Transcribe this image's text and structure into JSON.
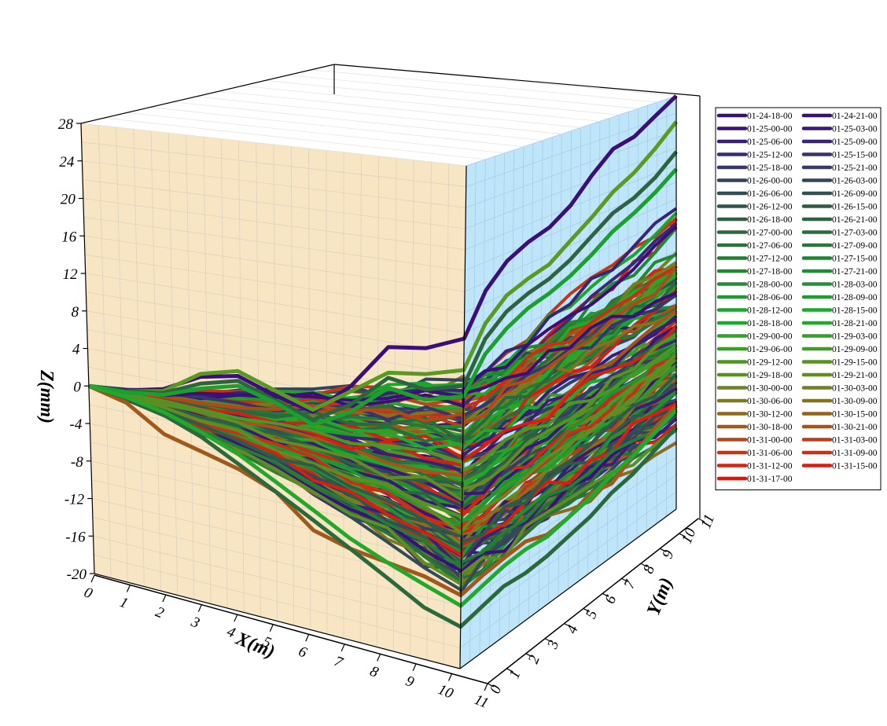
{
  "chart_data": {
    "type": "line",
    "title": "",
    "xlabel": "X(m)",
    "ylabel": "Y(m)",
    "zlabel": "Z(mm)",
    "x_range": [
      0,
      11
    ],
    "y_range": [
      0,
      11
    ],
    "z_range": [
      -20,
      28
    ],
    "x_ticks": [
      "0",
      "1",
      "2",
      "3",
      "4",
      "5",
      "6",
      "7",
      "8",
      "9",
      "10",
      "11"
    ],
    "y_ticks": [
      "0",
      "1",
      "2",
      "3",
      "4",
      "5",
      "6",
      "7",
      "8",
      "9",
      "10",
      "11"
    ],
    "z_ticks": [
      "-20",
      "-16",
      "-12",
      "-8",
      "-4",
      "0",
      "4",
      "8",
      "12",
      "16",
      "20",
      "24",
      "28"
    ],
    "grid": true,
    "legend_position": "right",
    "wall_colors": {
      "xz_wall": "#f7e5c3",
      "yz_wall": "#bfe5fb"
    },
    "series": [
      {
        "name": "01-24-18-00",
        "color": "#3c0f78"
      },
      {
        "name": "01-24-21-00",
        "color": "#3c0f78"
      },
      {
        "name": "01-25-00-00",
        "color": "#3b1577"
      },
      {
        "name": "01-25-03-00",
        "color": "#3b1a77"
      },
      {
        "name": "01-25-06-00",
        "color": "#3a2075"
      },
      {
        "name": "01-25-09-00",
        "color": "#3a2575"
      },
      {
        "name": "01-25-12-00",
        "color": "#392b73"
      },
      {
        "name": "01-25-15-00",
        "color": "#383070"
      },
      {
        "name": "01-25-18-00",
        "color": "#37366c"
      },
      {
        "name": "01-25-21-00",
        "color": "#373b68"
      },
      {
        "name": "01-26-00-00",
        "color": "#364062"
      },
      {
        "name": "01-26-03-00",
        "color": "#35455d"
      },
      {
        "name": "01-26-06-00",
        "color": "#334a57"
      },
      {
        "name": "01-26-09-00",
        "color": "#325052"
      },
      {
        "name": "01-26-12-00",
        "color": "#31554c"
      },
      {
        "name": "01-26-15-00",
        "color": "#305a47"
      },
      {
        "name": "01-26-18-00",
        "color": "#2d5f42"
      },
      {
        "name": "01-26-21-00",
        "color": "#2c643f"
      },
      {
        "name": "01-27-00-00",
        "color": "#2a693c"
      },
      {
        "name": "01-27-03-00",
        "color": "#296e3a"
      },
      {
        "name": "01-27-06-00",
        "color": "#277338"
      },
      {
        "name": "01-27-09-00",
        "color": "#267836"
      },
      {
        "name": "01-27-12-00",
        "color": "#247d34"
      },
      {
        "name": "01-27-15-00",
        "color": "#238233"
      },
      {
        "name": "01-27-18-00",
        "color": "#228732"
      },
      {
        "name": "01-27-21-00",
        "color": "#208c31"
      },
      {
        "name": "01-28-00-00",
        "color": "#1f9130"
      },
      {
        "name": "01-28-03-00",
        "color": "#1e962f"
      },
      {
        "name": "01-28-06-00",
        "color": "#1d9b2e"
      },
      {
        "name": "01-28-09-00",
        "color": "#1ca02d"
      },
      {
        "name": "01-28-12-00",
        "color": "#1ba52c"
      },
      {
        "name": "01-28-15-00",
        "color": "#1aaa2b"
      },
      {
        "name": "01-28-18-00",
        "color": "#1daa2a"
      },
      {
        "name": "01-28-21-00",
        "color": "#22a82a"
      },
      {
        "name": "01-29-00-00",
        "color": "#2aa529"
      },
      {
        "name": "01-29-03-00",
        "color": "#32a128"
      },
      {
        "name": "01-29-06-00",
        "color": "#3a9e27"
      },
      {
        "name": "01-29-09-00",
        "color": "#439a26"
      },
      {
        "name": "01-29-12-00",
        "color": "#4b9625"
      },
      {
        "name": "01-29-15-00",
        "color": "#549224"
      },
      {
        "name": "01-29-18-00",
        "color": "#5c8e23"
      },
      {
        "name": "01-29-21-00",
        "color": "#648a22"
      },
      {
        "name": "01-30-00-00",
        "color": "#6d8421"
      },
      {
        "name": "01-30-03-00",
        "color": "#757f20"
      },
      {
        "name": "01-30-06-00",
        "color": "#7e781f"
      },
      {
        "name": "01-30-09-00",
        "color": "#86721e"
      },
      {
        "name": "01-30-12-00",
        "color": "#8f6a1d"
      },
      {
        "name": "01-30-15-00",
        "color": "#97621c"
      },
      {
        "name": "01-30-18-00",
        "color": "#a0591b"
      },
      {
        "name": "01-30-21-00",
        "color": "#a8511a"
      },
      {
        "name": "01-31-00-00",
        "color": "#b04819"
      },
      {
        "name": "01-31-03-00",
        "color": "#b84018"
      },
      {
        "name": "01-31-06-00",
        "color": "#c03717"
      },
      {
        "name": "01-31-09-00",
        "color": "#c82f16"
      },
      {
        "name": "01-31-12-00",
        "color": "#d02614"
      },
      {
        "name": "01-31-15-00",
        "color": "#d81e12"
      },
      {
        "name": "01-31-17-00",
        "color": "#e01510"
      }
    ],
    "highlighted_curves": [
      {
        "color": "#3c0f78",
        "z_along_x": [
          0,
          0.3,
          1.2,
          3.2,
          4.0,
          2.7,
          1.8,
          5.0,
          9.5,
          10.0,
          11.5
        ],
        "z_along_y": [
          11.5,
          15.2,
          17.2,
          18.2,
          18.8,
          20.2,
          22.5,
          24.5,
          25.0,
          26.5,
          28.0
        ]
      },
      {
        "color": "#5a9a22",
        "z_along_x": [
          0,
          0.2,
          1.0,
          3.5,
          4.5,
          3.2,
          2.0,
          4.5,
          7.0,
          7.5,
          8.5
        ],
        "z_along_y": [
          8.5,
          12.0,
          13.8,
          14.5,
          15.0,
          16.5,
          18.0,
          19.8,
          21.0,
          22.8,
          25.0
        ]
      },
      {
        "color": "#2c643f",
        "z_along_x": [
          0,
          0.2,
          0.8,
          2.5,
          3.5,
          2.2,
          1.0,
          3.2,
          6.5,
          6.0,
          7.0
        ],
        "z_along_y": [
          7.0,
          10.5,
          12.2,
          13.0,
          13.5,
          14.5,
          16.0,
          17.5,
          18.2,
          19.5,
          21.5
        ]
      },
      {
        "color": "#1ca02d",
        "z_along_x": [
          0,
          0.1,
          0.6,
          2.0,
          3.0,
          2.0,
          0.5,
          2.5,
          5.5,
          5.0,
          6.0
        ],
        "z_along_y": [
          6.0,
          9.0,
          10.5,
          11.5,
          12.0,
          12.8,
          14.0,
          15.5,
          16.5,
          17.8,
          19.5
        ]
      },
      {
        "color": "#a0591b",
        "z_along_x": [
          0,
          -1.0,
          -3.5,
          -4.5,
          -5.5,
          -7.0,
          -10.0,
          -11.0,
          -11.5,
          -12.0,
          -13.0
        ],
        "z_along_y": [
          -13.0,
          -12.5,
          -12.2,
          -12.0,
          -12.8,
          -12.5,
          -11.5,
          -12.0,
          -10.5,
          -9.0,
          -8.0
        ]
      },
      {
        "color": "#2a693c",
        "z_along_x": [
          0,
          -0.5,
          -1.5,
          -3.0,
          -5.0,
          -7.0,
          -9.0,
          -11.0,
          -13.0,
          -15.0,
          -16.0
        ],
        "z_along_y": [
          -16.0,
          -15.5,
          -15.0,
          -15.2,
          -15.0,
          -14.5,
          -14.0,
          -13.0,
          -12.5,
          -11.5,
          -10.5
        ]
      },
      {
        "color": "#22a82a",
        "z_along_x": [
          0,
          -0.4,
          -1.2,
          -2.5,
          -4.0,
          -6.0,
          -8.0,
          -10.0,
          -11.5,
          -12.8,
          -14.0
        ],
        "z_along_y": [
          -14.0,
          -13.5,
          -13.0,
          -12.8,
          -13.0,
          -12.5,
          -12.0,
          -11.0,
          -10.5,
          -9.5,
          -8.5
        ]
      }
    ]
  }
}
